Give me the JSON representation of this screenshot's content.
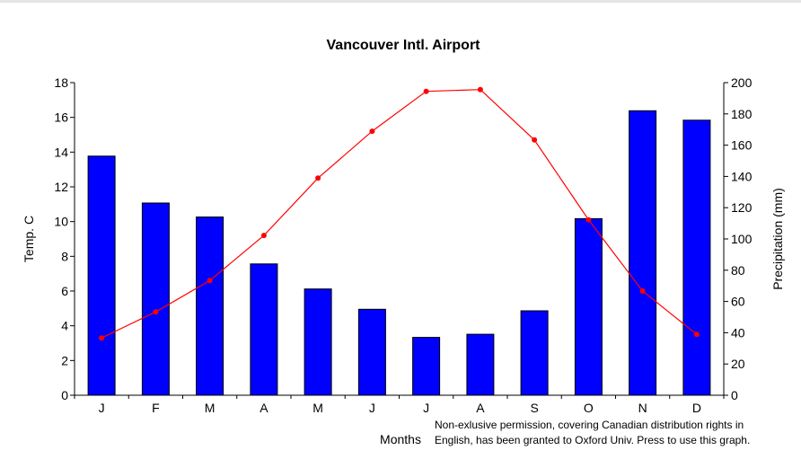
{
  "chart_data": {
    "type": "bar",
    "title": "Vancouver Intl. Airport",
    "xlabel": "Months",
    "ylabel": "Temp. C",
    "y2label": "Precipitation (mm)",
    "categories": [
      "J",
      "F",
      "M",
      "A",
      "M",
      "J",
      "J",
      "A",
      "S",
      "O",
      "N",
      "D"
    ],
    "ylim": [
      0,
      18
    ],
    "y2lim": [
      0,
      200
    ],
    "yticks": [
      "0",
      "2",
      "4",
      "6",
      "8",
      "10",
      "12",
      "14",
      "16",
      "18"
    ],
    "y2ticks": [
      "0",
      "20",
      "40",
      "60",
      "80",
      "100",
      "120",
      "140",
      "160",
      "180",
      "200"
    ],
    "grid": false,
    "series": [
      {
        "type": "bar",
        "axis": "right",
        "color": "#0000ff",
        "values": [
          153,
          123,
          114,
          84,
          68,
          55,
          37,
          39,
          54,
          113,
          182,
          176
        ]
      },
      {
        "type": "line",
        "axis": "left",
        "color": "#ff0000",
        "values": [
          3.3,
          4.8,
          6.6,
          9.2,
          12.5,
          15.2,
          17.5,
          17.6,
          14.7,
          10.1,
          6.0,
          3.5
        ]
      }
    ]
  },
  "footnote": {
    "line1": "Non-exlusive permission, covering Canadian distribution rights in",
    "line2": "English, has been granted to Oxford Univ. Press to use this graph."
  }
}
